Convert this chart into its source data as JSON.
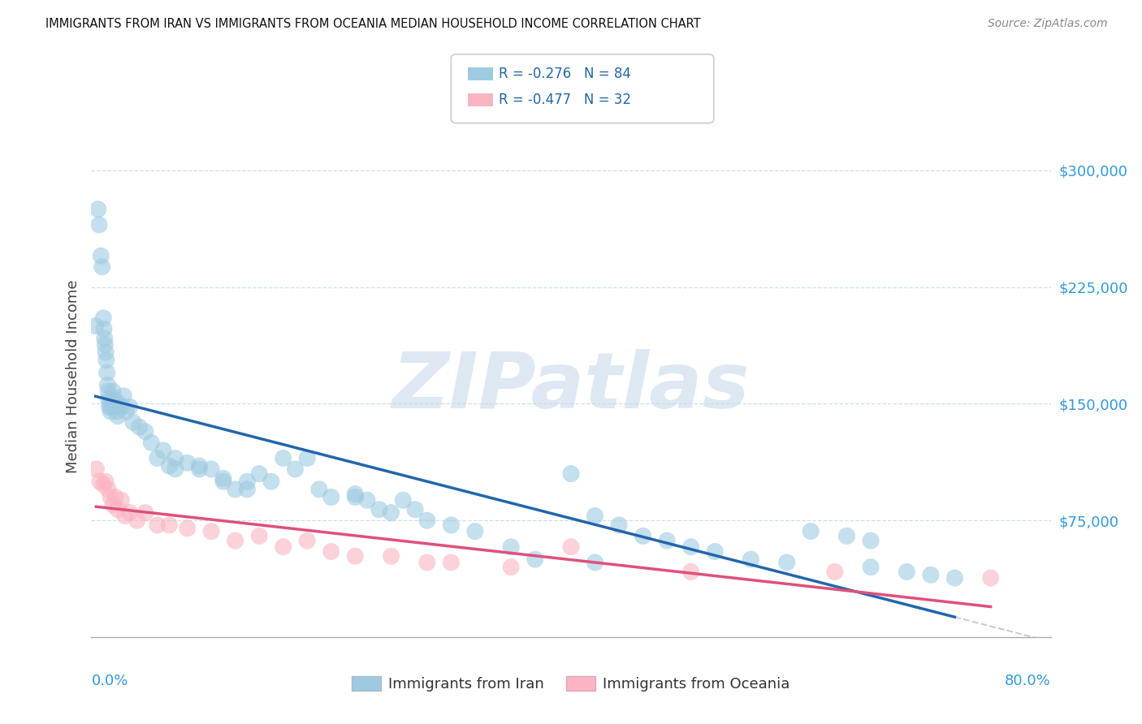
{
  "title": "IMMIGRANTS FROM IRAN VS IMMIGRANTS FROM OCEANIA MEDIAN HOUSEHOLD INCOME CORRELATION CHART",
  "source": "Source: ZipAtlas.com",
  "ylabel": "Median Household Income",
  "watermark": "ZIPatlas",
  "legend_iran": "R = -0.276   N = 84",
  "legend_oceania": "R = -0.477   N = 32",
  "blue_color": "#9ecae1",
  "pink_color": "#fbb4c1",
  "line_blue": "#2166ac",
  "line_pink": "#e0507a",
  "xlim": [
    0.0,
    80.0
  ],
  "ylim": [
    0,
    335000
  ],
  "yticks": [
    75000,
    150000,
    225000,
    300000
  ],
  "ytick_labels": [
    "$75,000",
    "$150,000",
    "$225,000",
    "$300,000"
  ],
  "iran_x": [
    0.35,
    0.55,
    0.65,
    0.8,
    0.9,
    1.0,
    1.05,
    1.1,
    1.15,
    1.2,
    1.25,
    1.3,
    1.35,
    1.4,
    1.45,
    1.5,
    1.55,
    1.6,
    1.65,
    1.7,
    1.8,
    1.9,
    2.0,
    2.1,
    2.2,
    2.3,
    2.5,
    2.7,
    2.9,
    3.2,
    3.5,
    4.0,
    4.5,
    5.0,
    5.5,
    6.5,
    7.0,
    8.0,
    9.0,
    10.0,
    11.0,
    12.0,
    13.0,
    14.0,
    15.0,
    16.0,
    17.0,
    18.0,
    19.0,
    20.0,
    22.0,
    23.0,
    24.0,
    25.0,
    26.0,
    27.0,
    28.0,
    30.0,
    32.0,
    35.0,
    37.0,
    40.0,
    42.0,
    44.0,
    46.0,
    48.0,
    50.0,
    52.0,
    55.0,
    58.0,
    60.0,
    63.0,
    65.0,
    68.0,
    70.0,
    72.0,
    65.0,
    42.0,
    22.0,
    6.0,
    13.0,
    7.0,
    11.0,
    9.0
  ],
  "iran_y": [
    200000,
    275000,
    265000,
    245000,
    238000,
    205000,
    198000,
    192000,
    188000,
    183000,
    178000,
    170000,
    162000,
    158000,
    153000,
    148000,
    150000,
    145000,
    148000,
    152000,
    158000,
    153000,
    148000,
    145000,
    142000,
    150000,
    148000,
    155000,
    145000,
    148000,
    138000,
    135000,
    132000,
    125000,
    115000,
    110000,
    108000,
    112000,
    110000,
    108000,
    100000,
    95000,
    95000,
    105000,
    100000,
    115000,
    108000,
    115000,
    95000,
    90000,
    90000,
    88000,
    82000,
    80000,
    88000,
    82000,
    75000,
    72000,
    68000,
    58000,
    50000,
    105000,
    78000,
    72000,
    65000,
    62000,
    58000,
    55000,
    50000,
    48000,
    68000,
    65000,
    62000,
    42000,
    40000,
    38000,
    45000,
    48000,
    92000,
    120000,
    100000,
    115000,
    102000,
    108000
  ],
  "oceania_x": [
    0.4,
    0.7,
    1.0,
    1.2,
    1.4,
    1.6,
    1.8,
    2.0,
    2.2,
    2.5,
    2.8,
    3.2,
    3.8,
    4.5,
    5.5,
    6.5,
    8.0,
    10.0,
    12.0,
    14.0,
    16.0,
    18.0,
    20.0,
    22.0,
    25.0,
    28.0,
    30.0,
    35.0,
    40.0,
    50.0,
    62.0,
    75.0
  ],
  "oceania_y": [
    108000,
    100000,
    98000,
    100000,
    95000,
    90000,
    85000,
    90000,
    82000,
    88000,
    78000,
    80000,
    75000,
    80000,
    72000,
    72000,
    70000,
    68000,
    62000,
    65000,
    58000,
    62000,
    55000,
    52000,
    52000,
    48000,
    48000,
    45000,
    58000,
    42000,
    42000,
    38000
  ]
}
